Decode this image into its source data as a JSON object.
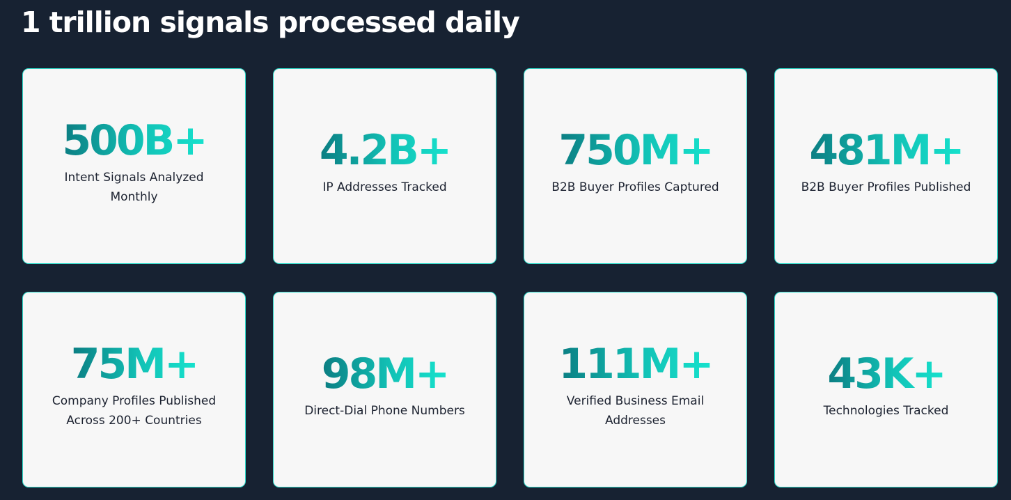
{
  "header": {
    "title": "1 trillion signals processed daily"
  },
  "stats": [
    {
      "value": "500B+",
      "label": "Intent Signals Analyzed Monthly"
    },
    {
      "value": "4.2B+",
      "label": "IP Addresses Tracked"
    },
    {
      "value": "750M+",
      "label": "B2B Buyer Profiles Captured"
    },
    {
      "value": "481M+",
      "label": "B2B Buyer Profiles Published"
    },
    {
      "value": "75M+",
      "label": "Company Profiles Published Across 200+ Countries"
    },
    {
      "value": "98M+",
      "label": "Direct-Dial Phone Numbers"
    },
    {
      "value": "111M+",
      "label": "Verified Business Email Addresses"
    },
    {
      "value": "43K+",
      "label": "Technologies Tracked"
    }
  ]
}
